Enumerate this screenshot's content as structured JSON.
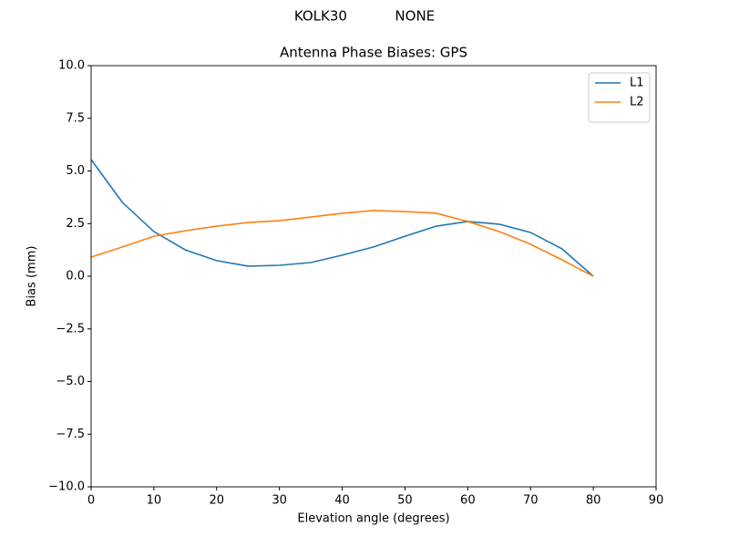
{
  "chart_data": {
    "type": "line",
    "suptitle": "KOLK30           NONE",
    "title": "Antenna Phase Biases: GPS",
    "x_label": "Elevation angle (degrees)",
    "y_label": "Bias (mm)",
    "x": [
      0,
      5,
      10,
      15,
      20,
      25,
      30,
      35,
      40,
      45,
      50,
      55,
      60,
      65,
      70,
      75,
      80
    ],
    "series": [
      {
        "name": "L1",
        "color": "#1f77b4",
        "values": [
          5.54,
          3.5,
          2.12,
          1.25,
          0.74,
          0.48,
          0.52,
          0.65,
          1.0,
          1.39,
          1.9,
          2.38,
          2.6,
          2.47,
          2.08,
          1.3,
          0
        ]
      },
      {
        "name": "L2",
        "color": "#ff7f0e",
        "values": [
          0.91,
          1.39,
          1.9,
          2.16,
          2.38,
          2.55,
          2.64,
          2.81,
          2.99,
          3.12,
          3.07,
          2.99,
          2.6,
          2.12,
          1.52,
          0.78,
          0
        ]
      }
    ],
    "xlim": [
      0,
      90
    ],
    "xticks": [
      0,
      10,
      20,
      30,
      40,
      50,
      60,
      70,
      80,
      90
    ],
    "ylim": [
      -10,
      10
    ],
    "yticks": [
      {
        "value": -10,
        "label": "−10.0"
      },
      {
        "value": -7.5,
        "label": "−7.5"
      },
      {
        "value": -5,
        "label": "−5.0"
      },
      {
        "value": -2.5,
        "label": "−2.5"
      },
      {
        "value": 0,
        "label": "0.0"
      },
      {
        "value": 2.5,
        "label": "2.5"
      },
      {
        "value": 5,
        "label": "5.0"
      },
      {
        "value": 7.5,
        "label": "7.5"
      },
      {
        "value": 10,
        "label": "10.0"
      }
    ],
    "grid": false,
    "legend": "upper right"
  }
}
